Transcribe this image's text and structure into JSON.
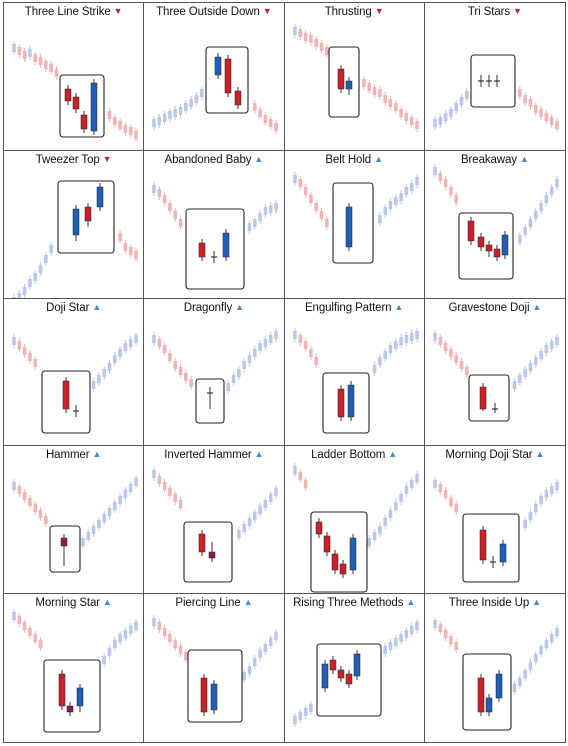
{
  "colors": {
    "bear_arrow": "#c9202a",
    "bull_arrow": "#4a86c8",
    "pattern_bear": "#c9202a",
    "pattern_bull": "#1f5fb8",
    "pattern_neutral": "#8a1a55",
    "context_bear": "#f0b4b4",
    "context_bull": "#b9c8e8",
    "box_border": "#222222"
  },
  "patterns": [
    {
      "name": "Three Line Strike",
      "direction": "bearish",
      "arrow_icon": "triangle-down-icon"
    },
    {
      "name": "Three Outside Down",
      "direction": "bearish",
      "arrow_icon": "triangle-down-icon"
    },
    {
      "name": "Thrusting",
      "direction": "bearish",
      "arrow_icon": "triangle-down-icon"
    },
    {
      "name": "Tri Stars",
      "direction": "bearish",
      "arrow_icon": "triangle-down-icon"
    },
    {
      "name": "Tweezer Top",
      "direction": "bearish",
      "arrow_icon": "triangle-down-icon"
    },
    {
      "name": "Abandoned Baby",
      "direction": "bullish",
      "arrow_icon": "triangle-up-icon"
    },
    {
      "name": "Belt Hold",
      "direction": "bullish",
      "arrow_icon": "triangle-up-icon"
    },
    {
      "name": "Breakaway",
      "direction": "bullish",
      "arrow_icon": "triangle-up-icon"
    },
    {
      "name": "Doji Star",
      "direction": "bullish",
      "arrow_icon": "triangle-up-icon"
    },
    {
      "name": "Dragonfly",
      "direction": "bullish",
      "arrow_icon": "triangle-up-icon"
    },
    {
      "name": "Engulfing Pattern",
      "direction": "bullish",
      "arrow_icon": "triangle-up-icon"
    },
    {
      "name": "Gravestone Doji",
      "direction": "bullish",
      "arrow_icon": "triangle-up-icon"
    },
    {
      "name": "Hammer",
      "direction": "bullish",
      "arrow_icon": "triangle-up-icon"
    },
    {
      "name": "Inverted Hammer",
      "direction": "bullish",
      "arrow_icon": "triangle-up-icon"
    },
    {
      "name": "Ladder Bottom",
      "direction": "bullish",
      "arrow_icon": "triangle-up-icon"
    },
    {
      "name": "Morning Doji Star",
      "direction": "bullish",
      "arrow_icon": "triangle-up-icon"
    },
    {
      "name": "Morning Star",
      "direction": "bullish",
      "arrow_icon": "triangle-up-icon"
    },
    {
      "name": "Piercing Line",
      "direction": "bullish",
      "arrow_icon": "triangle-up-icon"
    },
    {
      "name": "Rising Three Methods",
      "direction": "bullish",
      "arrow_icon": "triangle-up-icon"
    },
    {
      "name": "Three Inside Up",
      "direction": "bullish",
      "arrow_icon": "triangle-up-icon"
    }
  ]
}
